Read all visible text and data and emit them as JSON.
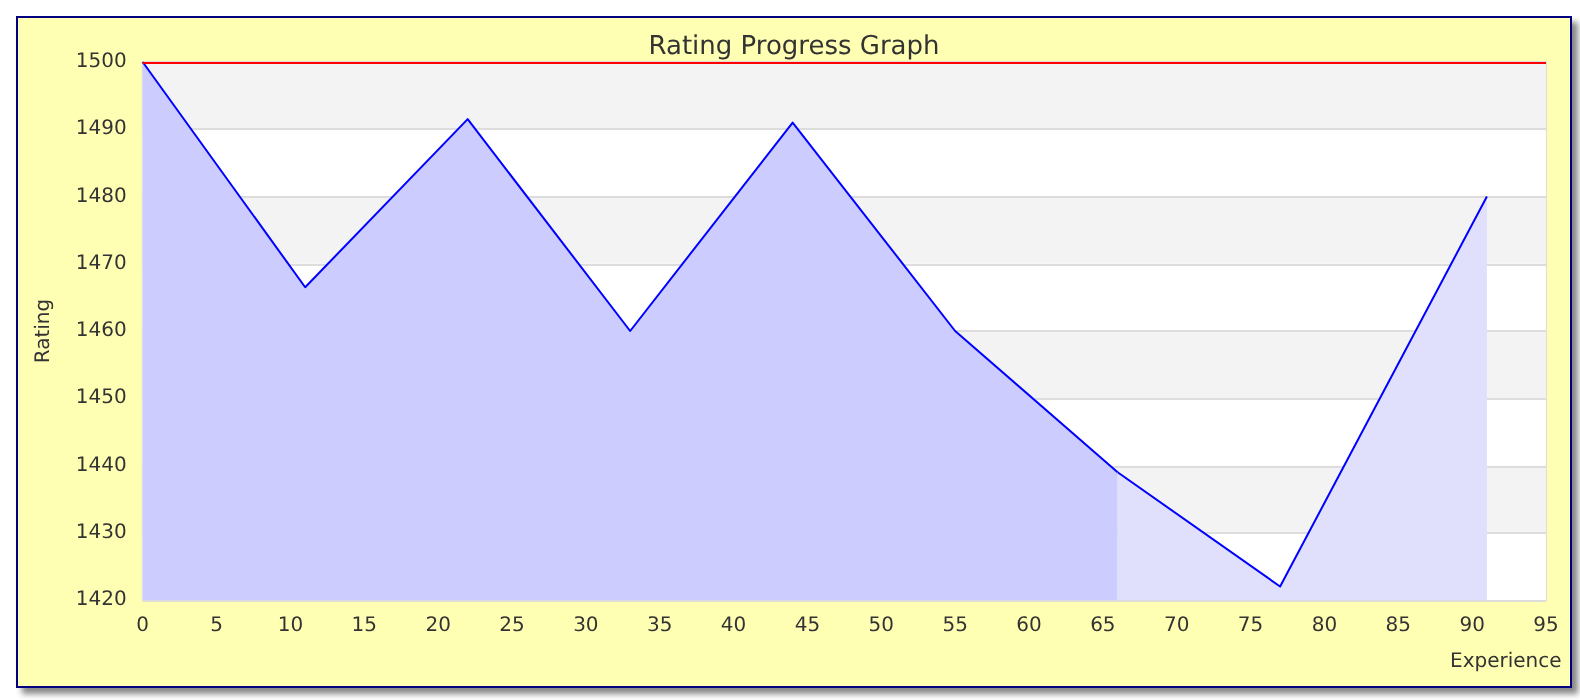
{
  "chart_data": {
    "type": "area",
    "title": "Rating Progress Graph",
    "xlabel": "Experience",
    "ylabel": "Rating",
    "series": [
      {
        "color": "#ccccff",
        "x": [
          0,
          11,
          22,
          33,
          44,
          55,
          66
        ],
        "values": [
          1500,
          1466.5,
          1491.5,
          1460,
          1491,
          1460,
          1439
        ]
      },
      {
        "color": "#e0e0fc",
        "x": [
          66,
          77,
          91
        ],
        "values": [
          1439,
          1422,
          1480
        ]
      }
    ],
    "xlim": [
      0,
      95
    ],
    "xticks": [
      0,
      5,
      10,
      15,
      20,
      25,
      30,
      35,
      40,
      45,
      50,
      55,
      60,
      65,
      70,
      75,
      80,
      85,
      90,
      95
    ],
    "ylim": [
      1420,
      1500
    ],
    "yticks": [
      1420,
      1430,
      1440,
      1450,
      1460,
      1470,
      1480,
      1490,
      1500
    ],
    "ref_lines": [
      {
        "axis": "y",
        "value": 1500,
        "color": "#ff0000"
      }
    ],
    "grid": "y"
  }
}
